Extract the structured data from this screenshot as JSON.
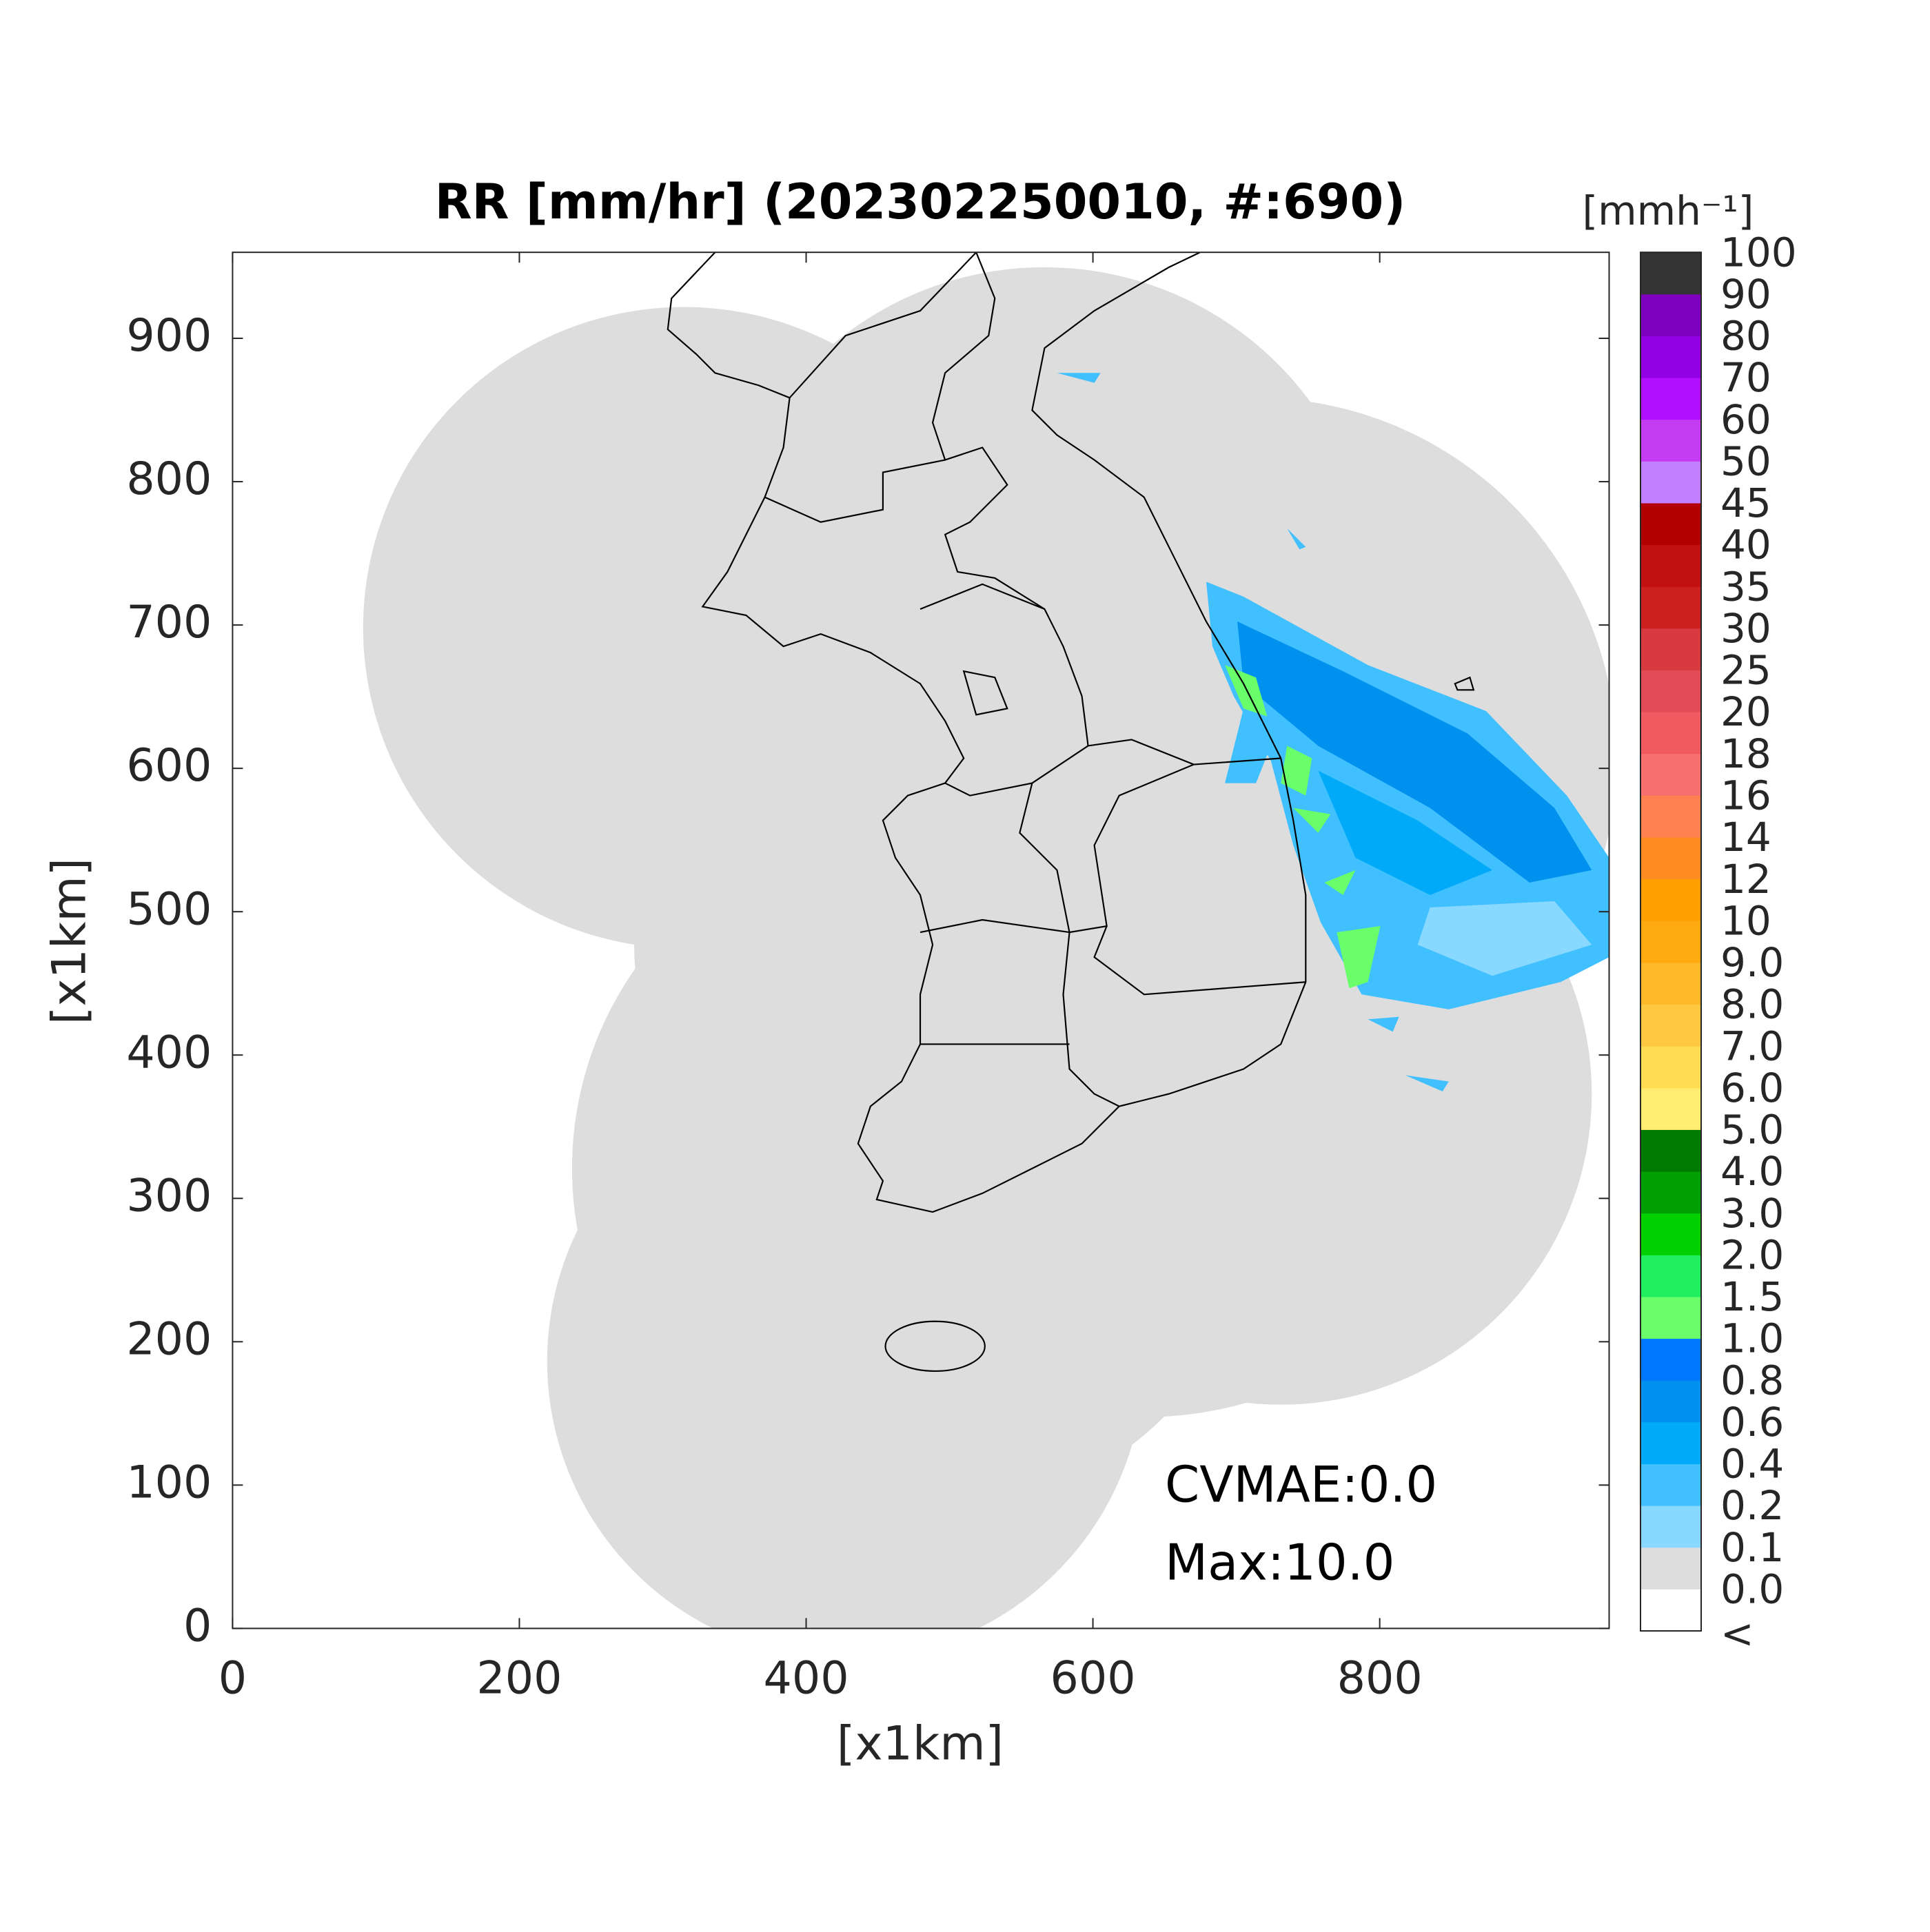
{
  "chart_data": {
    "type": "map",
    "title": "RR [mm/hr] (202302250010, #:690)",
    "x_label": "[x1km]",
    "y_label": "[x1km]",
    "xlim": [
      0,
      960
    ],
    "ylim": [
      0,
      960
    ],
    "xticks": [
      0,
      200,
      400,
      600,
      800
    ],
    "yticks": [
      0,
      100,
      200,
      300,
      400,
      500,
      600,
      700,
      800,
      900
    ],
    "annotations": [
      "CVMAE:0.0",
      "Max:10.0"
    ],
    "colorbar": {
      "label": "[mmh⁻¹]",
      "under_label": "<",
      "ticks": [
        {
          "value": 0,
          "label": "0.0"
        },
        0.1,
        0.2,
        0.4,
        0.6,
        0.8,
        {
          "value": 1,
          "label": "1.0"
        },
        1.5,
        {
          "value": 2,
          "label": "2.0"
        },
        {
          "value": 3,
          "label": "3.0"
        },
        {
          "value": 4,
          "label": "4.0"
        },
        {
          "value": 5,
          "label": "5.0"
        },
        {
          "value": 6,
          "label": "6.0"
        },
        {
          "value": 7,
          "label": "7.0"
        },
        {
          "value": 8,
          "label": "8.0"
        },
        {
          "value": 9,
          "label": "9.0"
        },
        10,
        12,
        14,
        16,
        18,
        20,
        25,
        30,
        35,
        40,
        45,
        50,
        60,
        70,
        80,
        90,
        100
      ],
      "colors": [
        "#ffffff",
        "#dddddd",
        "#88d8ff",
        "#40c0ff",
        "#00aaf8",
        "#0090ee",
        "#0077ff",
        "#6aff6a",
        "#20ee60",
        "#00d000",
        "#00a000",
        "#007a00",
        "#ffec70",
        "#ffdc50",
        "#ffc840",
        "#ffb828",
        "#ffaa10",
        "#ffa000",
        "#ff8c20",
        "#ff8050",
        "#f87070",
        "#f05a60",
        "#e24a55",
        "#d73a40",
        "#cc2020",
        "#c01010",
        "#b30000",
        "#c080ff",
        "#c43cf2",
        "#b30fff",
        "#9300e3",
        "#7f00bf",
        "#333333"
      ]
    }
  }
}
